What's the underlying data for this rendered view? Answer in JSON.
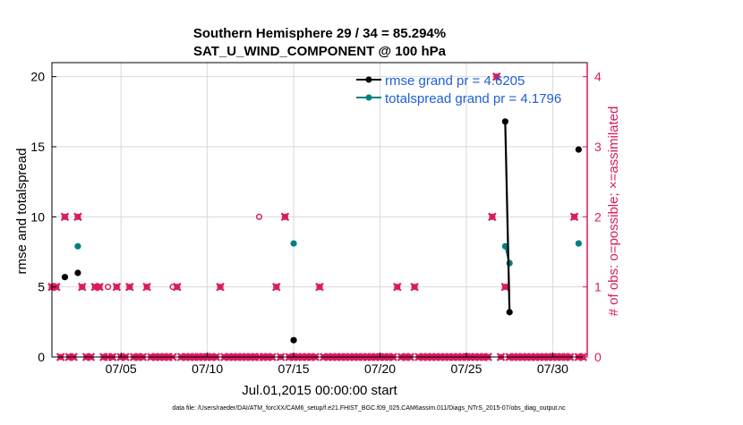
{
  "chart_data": {
    "type": "scatter",
    "title": "Southern Hemisphere 29 / 34 = 85.294%",
    "subtitle": "SAT_U_WIND_COMPONENT @ 100 hPa",
    "xlabel": "Jul.01,2015 00:00:00 start",
    "ylabel_left": "rmse and totalspread",
    "ylabel_right": "# of obs: o=possible; ×=assimilated",
    "footer": "data file: /Users/raeder/DAI/ATM_forcXX/CAM6_setup/f.e21.FHIST_BGC.f09_025.CAM6assim.011/Diags_NTrS_2015-07/obs_diag_output.nc",
    "xlim": [
      1.0,
      32.0
    ],
    "ylim_left": [
      0,
      21
    ],
    "ylim_right": [
      0,
      4.2
    ],
    "x_ticks": [
      5,
      10,
      15,
      20,
      25,
      30
    ],
    "x_tick_labels": [
      "07/05",
      "07/10",
      "07/15",
      "07/20",
      "07/25",
      "07/30"
    ],
    "y_ticks_left": [
      0,
      5,
      10,
      15,
      20
    ],
    "y_ticks_right": [
      0,
      1,
      2,
      3,
      4
    ],
    "colors": {
      "rmse": "#000000",
      "spread": "#008080",
      "obs": "#d81b60",
      "legend_text": "#1f5fd6",
      "grid": "#d9d9d9"
    },
    "legend": [
      {
        "label": "rmse grand pr = 4.6205",
        "color": "#000000"
      },
      {
        "label": "totalspread grand pr = 4.1796",
        "color": "#008080"
      }
    ],
    "series": [
      {
        "name": "rmse",
        "color": "#000000",
        "x": [
          1.75,
          2.5,
          15.0,
          27.25,
          27.5,
          31.5
        ],
        "y": [
          5.7,
          6.0,
          1.2,
          16.8,
          3.2,
          14.8
        ],
        "lines": [
          [
            27.25,
            27.5
          ]
        ]
      },
      {
        "name": "totalspread",
        "color": "#008080",
        "x": [
          2.5,
          15.0,
          27.25,
          27.5,
          31.5
        ],
        "y": [
          7.9,
          8.1,
          7.9,
          6.7,
          8.1
        ],
        "lines": [
          [
            27.25,
            27.5
          ]
        ]
      },
      {
        "name": "obs possible",
        "color": "#d81b60",
        "x": [
          1.0,
          1.25,
          1.5,
          1.75,
          2.0,
          2.25,
          2.5,
          2.75,
          3.0,
          3.25,
          3.5,
          3.75,
          4.0,
          4.25,
          4.5,
          4.75,
          5.0,
          5.25,
          5.5,
          5.75,
          6.0,
          6.25,
          6.5,
          6.75,
          7.0,
          7.25,
          7.5,
          7.75,
          8.0,
          8.25,
          8.5,
          8.75,
          9.0,
          9.25,
          9.5,
          9.75,
          10.0,
          10.25,
          10.5,
          10.75,
          11.0,
          11.25,
          11.5,
          11.75,
          12.0,
          12.25,
          12.5,
          12.75,
          13.0,
          13.25,
          13.5,
          13.75,
          14.0,
          14.25,
          14.5,
          14.75,
          15.0,
          15.25,
          15.5,
          15.75,
          16.0,
          16.25,
          16.5,
          16.75,
          17.0,
          17.25,
          17.5,
          17.75,
          18.0,
          18.25,
          18.5,
          18.75,
          19.0,
          19.25,
          19.5,
          19.75,
          20.0,
          20.25,
          20.5,
          20.75,
          21.0,
          21.25,
          21.5,
          21.75,
          22.0,
          22.25,
          22.5,
          22.75,
          23.0,
          23.25,
          23.5,
          23.75,
          24.0,
          24.25,
          24.5,
          24.75,
          25.0,
          25.25,
          25.5,
          25.75,
          26.0,
          26.25,
          26.5,
          26.75,
          27.0,
          27.25,
          27.5,
          27.75,
          28.0,
          28.25,
          28.5,
          28.75,
          29.0,
          29.25,
          29.5,
          29.75,
          30.0,
          30.25,
          30.5,
          30.75,
          31.0,
          31.25,
          31.5,
          31.75
        ],
        "y": [
          1,
          1,
          0,
          2,
          0,
          0,
          2,
          1,
          0,
          0,
          1,
          1,
          0,
          1,
          0,
          1,
          0,
          0,
          1,
          0,
          0,
          0,
          1,
          0,
          0,
          0,
          0,
          0,
          1,
          1,
          0,
          0,
          0,
          0,
          0,
          0,
          0,
          0,
          0,
          1,
          0,
          0,
          0,
          0,
          0,
          0,
          0,
          0,
          2,
          0,
          0,
          0,
          1,
          0,
          2,
          0,
          0,
          0,
          0,
          0,
          0,
          0,
          1,
          0,
          0,
          0,
          0,
          0,
          0,
          0,
          0,
          0,
          0,
          0,
          0,
          0,
          0,
          0,
          0,
          0,
          1,
          0,
          0,
          0,
          1,
          0,
          0,
          0,
          0,
          0,
          0,
          0,
          0,
          0,
          0,
          0,
          0,
          0,
          0,
          0,
          0,
          0,
          2,
          4,
          0,
          1,
          0,
          0,
          0,
          0,
          0,
          0,
          0,
          0,
          0,
          0,
          0,
          0,
          0,
          0,
          0,
          2,
          0,
          0
        ]
      },
      {
        "name": "obs assimilated",
        "color": "#d81b60",
        "x": [
          1.0,
          1.25,
          1.5,
          1.75,
          2.0,
          2.25,
          2.5,
          2.75,
          3.0,
          3.25,
          3.5,
          3.75,
          4.0,
          4.25,
          4.5,
          4.75,
          5.0,
          5.25,
          5.5,
          5.75,
          6.0,
          6.25,
          6.5,
          6.75,
          7.0,
          7.25,
          7.5,
          7.75,
          8.0,
          8.25,
          8.5,
          8.75,
          9.0,
          9.25,
          9.5,
          9.75,
          10.0,
          10.25,
          10.5,
          10.75,
          11.0,
          11.25,
          11.5,
          11.75,
          12.0,
          12.25,
          12.5,
          12.75,
          13.0,
          13.25,
          13.5,
          13.75,
          14.0,
          14.25,
          14.5,
          14.75,
          15.0,
          15.25,
          15.5,
          15.75,
          16.0,
          16.25,
          16.5,
          16.75,
          17.0,
          17.25,
          17.5,
          17.75,
          18.0,
          18.25,
          18.5,
          18.75,
          19.0,
          19.25,
          19.5,
          19.75,
          20.0,
          20.25,
          20.5,
          20.75,
          21.0,
          21.25,
          21.5,
          21.75,
          22.0,
          22.25,
          22.5,
          22.75,
          23.0,
          23.25,
          23.5,
          23.75,
          24.0,
          24.25,
          24.5,
          24.75,
          25.0,
          25.25,
          25.5,
          25.75,
          26.0,
          26.25,
          26.5,
          26.75,
          27.0,
          27.25,
          27.5,
          27.75,
          28.0,
          28.25,
          28.5,
          28.75,
          29.0,
          29.25,
          29.5,
          29.75,
          30.0,
          30.25,
          30.5,
          30.75,
          31.0,
          31.25,
          31.5,
          31.75
        ],
        "y": [
          1,
          1,
          0,
          2,
          0,
          0,
          2,
          1,
          0,
          0,
          1,
          1,
          0,
          0,
          0,
          1,
          0,
          0,
          1,
          0,
          0,
          0,
          1,
          0,
          0,
          0,
          0,
          0,
          0,
          1,
          0,
          0,
          0,
          0,
          0,
          0,
          0,
          0,
          0,
          1,
          0,
          0,
          0,
          0,
          0,
          0,
          0,
          0,
          0,
          0,
          0,
          0,
          1,
          0,
          2,
          0,
          0,
          0,
          0,
          0,
          0,
          0,
          1,
          0,
          0,
          0,
          0,
          0,
          0,
          0,
          0,
          0,
          0,
          0,
          0,
          0,
          0,
          0,
          0,
          0,
          1,
          0,
          0,
          0,
          1,
          0,
          0,
          0,
          0,
          0,
          0,
          0,
          0,
          0,
          0,
          0,
          0,
          0,
          0,
          0,
          0,
          0,
          2,
          4,
          0,
          1,
          0,
          0,
          0,
          0,
          0,
          0,
          0,
          0,
          0,
          0,
          0,
          0,
          0,
          0,
          0,
          2,
          0,
          0
        ]
      }
    ]
  }
}
